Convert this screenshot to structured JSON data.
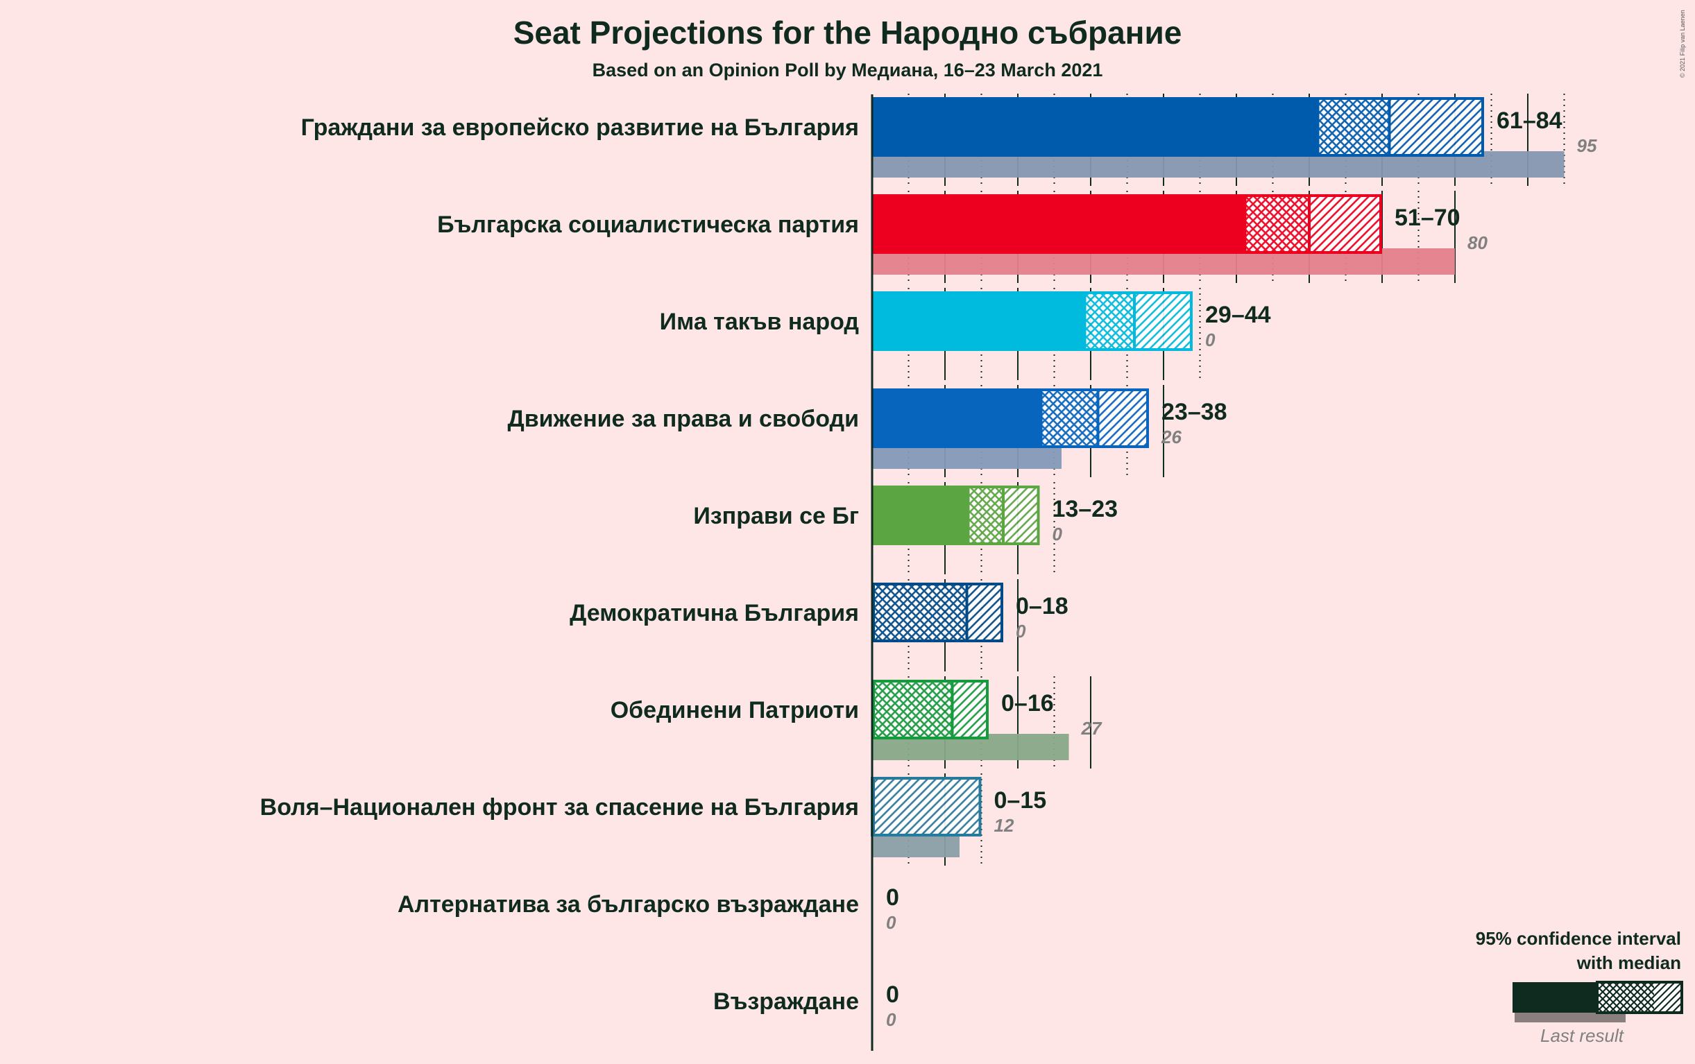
{
  "title": "Seat Projections for the Народно събрание",
  "subtitle": "Based on an Opinion Poll by Медиана, 16–23 March 2021",
  "copyright": "© 2021 Filip van Laenen",
  "legend": {
    "title_line1": "95% confidence interval",
    "title_line2": "with median",
    "last_result": "Last result"
  },
  "chart_data": {
    "type": "bar",
    "title": "Seat Projections for the Народно събрание",
    "subtitle": "Based on an Opinion Poll by Медиана, 16–23 March 2021",
    "xlim": [
      0,
      96
    ],
    "grid": true,
    "legend_position": "bottom-right",
    "parties": [
      {
        "name": "Граждани за европейско развитие на България",
        "low": 61,
        "median": 71,
        "high": 84,
        "last": 95,
        "range_label": "61–84",
        "last_label": "95",
        "color": "#005BAC",
        "last_color": "#8497B0"
      },
      {
        "name": "Българска социалистическа партия",
        "low": 51,
        "median": 60,
        "high": 70,
        "last": 80,
        "range_label": "51–70",
        "last_label": "80",
        "color": "#ED001F",
        "last_color": "#E4808A"
      },
      {
        "name": "Има такъв народ",
        "low": 29,
        "median": 36,
        "high": 44,
        "last": 0,
        "range_label": "29–44",
        "last_label": "0",
        "color": "#00BBDD",
        "last_color": "#80C8D8"
      },
      {
        "name": "Движение за права и свободи",
        "low": 23,
        "median": 31,
        "high": 38,
        "last": 26,
        "range_label": "23–38",
        "last_label": "26",
        "color": "#0765BE",
        "last_color": "#8499B8"
      },
      {
        "name": "Изправи се Бг",
        "low": 13,
        "median": 18,
        "high": 23,
        "last": 0,
        "range_label": "13–23",
        "last_label": "0",
        "color": "#5BA543",
        "last_color": "#A6C098"
      },
      {
        "name": "Демократична България",
        "low": 0,
        "median": 13,
        "high": 18,
        "last": 0,
        "range_label": "0–18",
        "last_label": "0",
        "color": "#004A87",
        "last_color": "#8090A8"
      },
      {
        "name": "Обединени Патриоти",
        "low": 0,
        "median": 11,
        "high": 16,
        "last": 27,
        "range_label": "0–16",
        "last_label": "27",
        "color": "#159A3E",
        "last_color": "#88A888"
      },
      {
        "name": "Воля–Национален фронт за спасение на България",
        "low": 0,
        "median": 0,
        "high": 15,
        "last": 12,
        "range_label": "0–15",
        "last_label": "12",
        "color": "#267A9C",
        "last_color": "#8A9FA8"
      },
      {
        "name": "Алтернатива за българско възраждане",
        "low": 0,
        "median": 0,
        "high": 0,
        "last": 0,
        "range_label": "0",
        "last_label": "0",
        "color": "#333333",
        "last_color": "#999999"
      },
      {
        "name": "Възраждане",
        "low": 0,
        "median": 0,
        "high": 0,
        "last": 0,
        "range_label": "0",
        "last_label": "0",
        "color": "#333333",
        "last_color": "#999999"
      }
    ]
  }
}
